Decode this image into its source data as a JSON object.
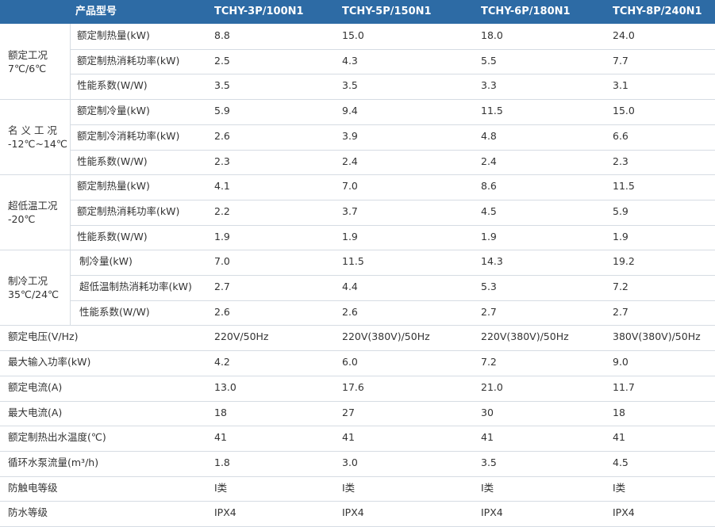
{
  "header": {
    "title": "产品型号",
    "models": [
      "TCHY-3P/100N1",
      "TCHY-5P/150N1",
      "TCHY-6P/180N1",
      "TCHY-8P/240N1"
    ]
  },
  "groups": [
    {
      "label_lines": [
        "额定工况",
        "7℃/6℃"
      ],
      "rows": [
        {
          "label": "额定制热量(kW)",
          "values": [
            "8.8",
            "15.0",
            "18.0",
            "24.0"
          ]
        },
        {
          "label": "额定制热消耗功率(kW)",
          "values": [
            "2.5",
            "4.3",
            "5.5",
            "7.7"
          ]
        },
        {
          "label": "性能系数(W/W)",
          "values": [
            "3.5",
            "3.5",
            "3.3",
            "3.1"
          ]
        }
      ]
    },
    {
      "label_lines": [
        "名 义 工 况",
        "-12℃~14℃"
      ],
      "rows": [
        {
          "label": "额定制冷量(kW)",
          "values": [
            "5.9",
            "9.4",
            "11.5",
            "15.0"
          ]
        },
        {
          "label": "额定制冷消耗功率(kW)",
          "values": [
            "2.6",
            "3.9",
            "4.8",
            "6.6"
          ]
        },
        {
          "label": "性能系数(W/W)",
          "values": [
            "2.3",
            "2.4",
            "2.4",
            "2.3"
          ]
        }
      ]
    },
    {
      "label_lines": [
        "超低温工况",
        "-20℃"
      ],
      "rows": [
        {
          "label": "额定制热量(kW)",
          "values": [
            "4.1",
            "7.0",
            "8.6",
            "11.5"
          ]
        },
        {
          "label": "额定制热消耗功率(kW)",
          "values": [
            "2.2",
            "3.7",
            "4.5",
            "5.9"
          ]
        },
        {
          "label": "性能系数(W/W)",
          "values": [
            "1.9",
            "1.9",
            "1.9",
            "1.9"
          ]
        }
      ]
    },
    {
      "label_lines": [
        "制冷工况",
        "35℃/24℃"
      ],
      "rows": [
        {
          "label": "制冷量(kW)",
          "values": [
            "7.0",
            "11.5",
            "14.3",
            "19.2"
          ]
        },
        {
          "label": "超低温制热消耗功率(kW)",
          "values": [
            "2.7",
            "4.4",
            "5.3",
            "7.2"
          ]
        },
        {
          "label": "性能系数(W/W)",
          "values": [
            "2.6",
            "2.6",
            "2.7",
            "2.7"
          ]
        }
      ]
    }
  ],
  "single_rows": [
    {
      "label": "额定电压(V/Hz)",
      "values": [
        "220V/50Hz",
        "220V(380V)/50Hz",
        "220V(380V)/50Hz",
        "380V(380V)/50Hz"
      ]
    },
    {
      "label": "最大输入功率(kW)",
      "values": [
        "4.2",
        "6.0",
        "7.2",
        "9.0"
      ]
    },
    {
      "label": "额定电流(A)",
      "values": [
        "13.0",
        "17.6",
        "21.0",
        "11.7"
      ]
    },
    {
      "label": "最大电流(A)",
      "values": [
        "18",
        "27",
        "30",
        "18"
      ]
    },
    {
      "label": "额定制热出水温度(℃)",
      "values": [
        "41",
        "41",
        "41",
        "41"
      ]
    },
    {
      "label": "循环水泵流量(m³/h)",
      "values": [
        "1.8",
        "3.0",
        "3.5",
        "4.5"
      ]
    },
    {
      "label": "防触电等级",
      "values": [
        "I类",
        "I类",
        "I类",
        "I类"
      ]
    },
    {
      "label": "防水等级",
      "values": [
        "IPX4",
        "IPX4",
        "IPX4",
        "IPX4"
      ]
    }
  ]
}
